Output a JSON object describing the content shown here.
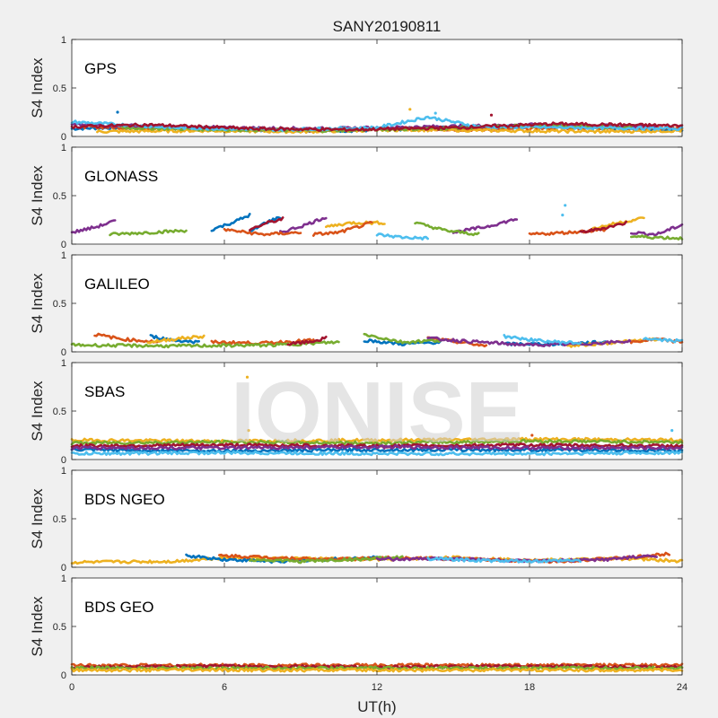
{
  "chart_data": {
    "type": "scatter",
    "title": "SANY20190811",
    "xlabel": "UT(h)",
    "ylabel": "S4 Index",
    "xlim": [
      0,
      24
    ],
    "ylim": [
      0,
      1
    ],
    "x_ticks": [
      "0",
      "6",
      "12",
      "18",
      "24"
    ],
    "y_ticks": [
      "0",
      "0.5",
      "1"
    ],
    "watermark": "IONISE",
    "series_colors": [
      "#0072bd",
      "#d95319",
      "#edb120",
      "#7e2f8e",
      "#77ac30",
      "#4dbeee",
      "#a2142f"
    ],
    "panels": [
      {
        "label": "GPS",
        "tracks": [
          {
            "color": 0,
            "x": [
              0,
              3,
              7,
              11,
              15,
              19,
              22,
              24
            ],
            "y": [
              0.08,
              0.1,
              0.07,
              0.06,
              0.09,
              0.1,
              0.08,
              0.07
            ]
          },
          {
            "color": 1,
            "x": [
              0.5,
              4,
              8,
              12,
              16,
              20,
              24
            ],
            "y": [
              0.1,
              0.08,
              0.06,
              0.08,
              0.07,
              0.09,
              0.08
            ]
          },
          {
            "color": 2,
            "x": [
              1,
              5,
              9,
              13,
              17,
              21,
              24
            ],
            "y": [
              0.05,
              0.06,
              0.05,
              0.07,
              0.06,
              0.05,
              0.06
            ]
          },
          {
            "color": 3,
            "x": [
              0,
              2.5,
              6,
              10,
              14,
              18,
              23
            ],
            "y": [
              0.12,
              0.11,
              0.09,
              0.08,
              0.1,
              0.12,
              0.1
            ]
          },
          {
            "color": 4,
            "x": [
              2,
              6,
              10,
              14,
              18,
              22
            ],
            "y": [
              0.09,
              0.07,
              0.06,
              0.08,
              0.11,
              0.09
            ]
          },
          {
            "color": 5,
            "x": [
              0,
              4,
              8,
              12,
              14,
              16,
              20,
              24
            ],
            "y": [
              0.15,
              0.09,
              0.07,
              0.09,
              0.2,
              0.1,
              0.09,
              0.08
            ]
          },
          {
            "color": 6,
            "x": [
              0,
              3,
              7,
              11,
              15,
              19,
              24
            ],
            "y": [
              0.1,
              0.12,
              0.08,
              0.07,
              0.09,
              0.13,
              0.11
            ]
          }
        ],
        "spikes": [
          {
            "color": 0,
            "x": 1.8,
            "y": 0.25
          },
          {
            "color": 5,
            "x": 14.3,
            "y": 0.24
          },
          {
            "color": 2,
            "x": 13.3,
            "y": 0.28
          },
          {
            "color": 6,
            "x": 16.5,
            "y": 0.22
          }
        ]
      },
      {
        "label": "GLONASS",
        "tracks": [
          {
            "color": 0,
            "x": [
              5.5,
              6.3,
              7
            ],
            "y": [
              0.15,
              0.22,
              0.3
            ]
          },
          {
            "color": 0,
            "x": [
              7,
              7.6,
              8.2
            ],
            "y": [
              0.12,
              0.22,
              0.28
            ]
          },
          {
            "color": 3,
            "x": [
              0,
              1,
              1.7
            ],
            "y": [
              0.12,
              0.18,
              0.24
            ]
          },
          {
            "color": 3,
            "x": [
              8.2,
              9.2,
              10
            ],
            "y": [
              0.12,
              0.2,
              0.28
            ]
          },
          {
            "color": 3,
            "x": [
              15,
              16.3,
              17.5
            ],
            "y": [
              0.12,
              0.18,
              0.26
            ]
          },
          {
            "color": 4,
            "x": [
              1.5,
              3,
              4.5
            ],
            "y": [
              0.1,
              0.12,
              0.14
            ]
          },
          {
            "color": 4,
            "x": [
              13.5,
              14.7,
              16
            ],
            "y": [
              0.22,
              0.14,
              0.1
            ]
          },
          {
            "color": 2,
            "x": [
              10,
              11,
              12.3
            ],
            "y": [
              0.18,
              0.22,
              0.22
            ]
          },
          {
            "color": 2,
            "x": [
              20.5,
              21.5,
              22.5
            ],
            "y": [
              0.16,
              0.22,
              0.27
            ]
          },
          {
            "color": 5,
            "x": [
              12,
              13,
              14
            ],
            "y": [
              0.1,
              0.07,
              0.06
            ]
          },
          {
            "color": 1,
            "x": [
              6,
              7.5,
              9
            ],
            "y": [
              0.15,
              0.1,
              0.12
            ]
          },
          {
            "color": 1,
            "x": [
              9.5,
              10.5,
              11.8
            ],
            "y": [
              0.1,
              0.12,
              0.22
            ]
          },
          {
            "color": 1,
            "x": [
              18,
              19.5,
              21
            ],
            "y": [
              0.1,
              0.12,
              0.15
            ]
          },
          {
            "color": 6,
            "x": [
              7,
              7.7,
              8.3
            ],
            "y": [
              0.15,
              0.22,
              0.26
            ]
          },
          {
            "color": 6,
            "x": [
              20,
              21,
              21.8
            ],
            "y": [
              0.12,
              0.17,
              0.22
            ]
          },
          {
            "color": 3,
            "x": [
              22,
              23,
              24
            ],
            "y": [
              0.12,
              0.1,
              0.2
            ]
          },
          {
            "color": 4,
            "x": [
              22,
              23,
              24
            ],
            "y": [
              0.08,
              0.07,
              0.06
            ]
          }
        ],
        "spikes": [
          {
            "color": 5,
            "x": 19.4,
            "y": 0.4
          },
          {
            "color": 5,
            "x": 19.3,
            "y": 0.3
          }
        ]
      },
      {
        "label": "GALILEO",
        "tracks": [
          {
            "color": 1,
            "x": [
              0.9,
              2,
              3.5
            ],
            "y": [
              0.18,
              0.13,
              0.1
            ]
          },
          {
            "color": 1,
            "x": [
              5.5,
              7.5,
              9.5
            ],
            "y": [
              0.1,
              0.09,
              0.12
            ]
          },
          {
            "color": 1,
            "x": [
              14,
              15.2,
              16.3
            ],
            "y": [
              0.14,
              0.1,
              0.06
            ]
          },
          {
            "color": 0,
            "x": [
              3.1,
              4,
              5
            ],
            "y": [
              0.16,
              0.12,
              0.1
            ]
          },
          {
            "color": 0,
            "x": [
              11.5,
              13,
              14.5
            ],
            "y": [
              0.12,
              0.08,
              0.1
            ]
          },
          {
            "color": 0,
            "x": [
              17,
              19,
              21
            ],
            "y": [
              0.08,
              0.08,
              0.1
            ]
          },
          {
            "color": 2,
            "x": [
              3,
              4.3,
              5.2
            ],
            "y": [
              0.1,
              0.14,
              0.16
            ]
          },
          {
            "color": 2,
            "x": [
              19.5,
              21,
              23
            ],
            "y": [
              0.06,
              0.09,
              0.13
            ]
          },
          {
            "color": 4,
            "x": [
              0,
              4,
              8,
              10.5
            ],
            "y": [
              0.07,
              0.06,
              0.07,
              0.1
            ]
          },
          {
            "color": 4,
            "x": [
              11.5,
              13,
              14.5
            ],
            "y": [
              0.18,
              0.1,
              0.12
            ]
          },
          {
            "color": 3,
            "x": [
              14,
              16,
              18,
              20,
              22
            ],
            "y": [
              0.14,
              0.1,
              0.07,
              0.08,
              0.11
            ]
          },
          {
            "color": 5,
            "x": [
              17,
              18.5,
              20
            ],
            "y": [
              0.16,
              0.11,
              0.09
            ]
          },
          {
            "color": 6,
            "x": [
              8.5,
              9.3,
              10
            ],
            "y": [
              0.08,
              0.1,
              0.14
            ]
          },
          {
            "color": 1,
            "x": [
              22,
              23,
              24
            ],
            "y": [
              0.1,
              0.13,
              0.1
            ]
          },
          {
            "color": 5,
            "x": [
              22.5,
              23.3,
              24
            ],
            "y": [
              0.14,
              0.12,
              0.11
            ]
          }
        ],
        "spikes": []
      },
      {
        "label": "SBAS",
        "tracks": [
          {
            "color": 2,
            "x": [
              0,
              6,
              12,
              18,
              24
            ],
            "y": [
              0.2,
              0.19,
              0.2,
              0.21,
              0.2
            ]
          },
          {
            "color": 4,
            "x": [
              0,
              6,
              12,
              18,
              24
            ],
            "y": [
              0.17,
              0.18,
              0.17,
              0.19,
              0.18
            ]
          },
          {
            "color": 6,
            "x": [
              0,
              6,
              12,
              18,
              24
            ],
            "y": [
              0.14,
              0.15,
              0.14,
              0.15,
              0.14
            ]
          },
          {
            "color": 0,
            "x": [
              0,
              6,
              12,
              18,
              24
            ],
            "y": [
              0.1,
              0.09,
              0.1,
              0.1,
              0.09
            ]
          },
          {
            "color": 5,
            "x": [
              0,
              6,
              12,
              18,
              24
            ],
            "y": [
              0.06,
              0.07,
              0.06,
              0.06,
              0.07
            ]
          },
          {
            "color": 3,
            "x": [
              0,
              6,
              12,
              18,
              24
            ],
            "y": [
              0.12,
              0.12,
              0.13,
              0.12,
              0.12
            ]
          }
        ],
        "spikes": [
          {
            "color": 2,
            "x": 6.9,
            "y": 0.85
          },
          {
            "color": 2,
            "x": 6.95,
            "y": 0.3
          },
          {
            "color": 5,
            "x": 23.6,
            "y": 0.3
          },
          {
            "color": 1,
            "x": 18.1,
            "y": 0.25
          }
        ]
      },
      {
        "label": "BDS NGEO",
        "tracks": [
          {
            "color": 2,
            "x": [
              0,
              4,
              6,
              12,
              15,
              18,
              22,
              24
            ],
            "y": [
              0.05,
              0.06,
              0.1,
              0.08,
              0.1,
              0.07,
              0.09,
              0.06
            ]
          },
          {
            "color": 0,
            "x": [
              4.5,
              6,
              8,
              10,
              12
            ],
            "y": [
              0.12,
              0.08,
              0.06,
              0.08,
              0.1
            ]
          },
          {
            "color": 1,
            "x": [
              5.8,
              8,
              10,
              13,
              16,
              19,
              22,
              23.5
            ],
            "y": [
              0.12,
              0.1,
              0.08,
              0.1,
              0.08,
              0.06,
              0.1,
              0.14
            ]
          },
          {
            "color": 4,
            "x": [
              7,
              9,
              11,
              13
            ],
            "y": [
              0.08,
              0.06,
              0.08,
              0.1
            ]
          },
          {
            "color": 3,
            "x": [
              12,
              15,
              18,
              21,
              23
            ],
            "y": [
              0.08,
              0.09,
              0.06,
              0.08,
              0.12
            ]
          },
          {
            "color": 5,
            "x": [
              14,
              16,
              18,
              20
            ],
            "y": [
              0.09,
              0.07,
              0.06,
              0.07
            ]
          }
        ],
        "spikes": []
      },
      {
        "label": "BDS GEO",
        "tracks": [
          {
            "color": 1,
            "x": [
              0,
              6,
              12,
              18,
              24
            ],
            "y": [
              0.1,
              0.1,
              0.1,
              0.1,
              0.1
            ]
          },
          {
            "color": 6,
            "x": [
              0,
              6,
              12,
              18,
              24
            ],
            "y": [
              0.08,
              0.09,
              0.08,
              0.09,
              0.08
            ]
          },
          {
            "color": 4,
            "x": [
              0,
              6,
              12,
              18,
              24
            ],
            "y": [
              0.07,
              0.07,
              0.07,
              0.07,
              0.07
            ]
          },
          {
            "color": 2,
            "x": [
              0,
              6,
              12,
              18,
              24
            ],
            "y": [
              0.05,
              0.05,
              0.05,
              0.05,
              0.05
            ]
          }
        ],
        "spikes": []
      }
    ]
  }
}
